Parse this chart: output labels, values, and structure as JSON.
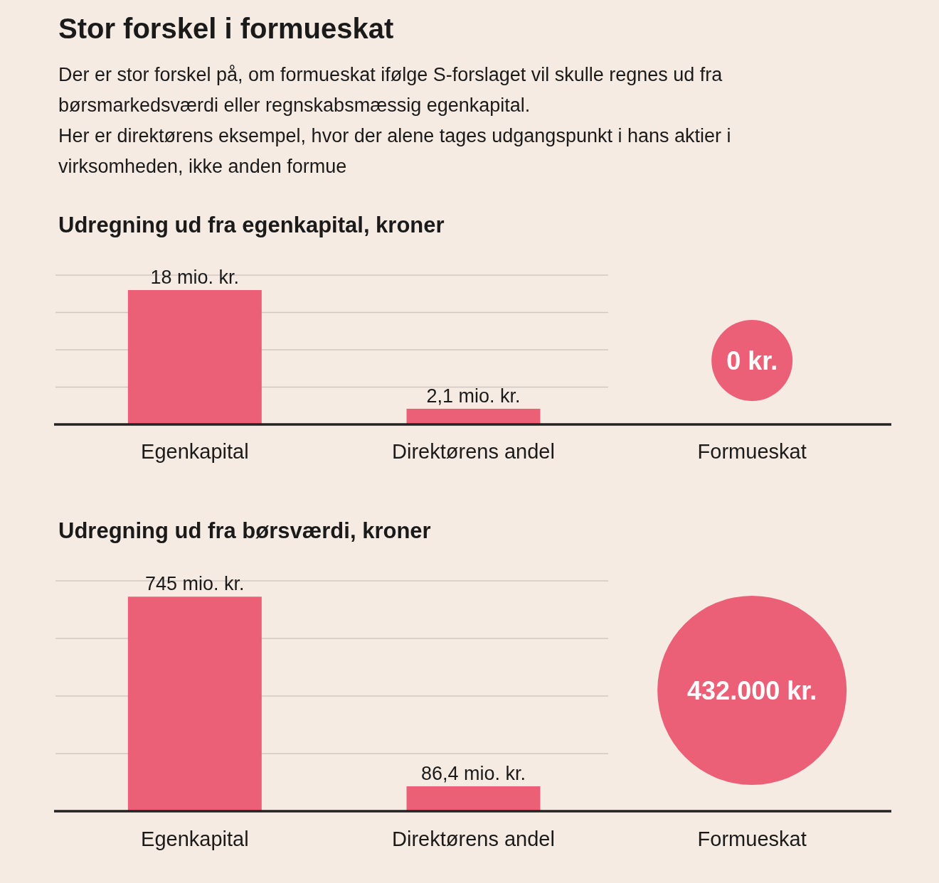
{
  "chart_data": [
    {
      "type": "other",
      "title": "Stor forskel i formueskat",
      "subtitle": "Der er stor forskel på, om formueskat ifølge S-forslaget vil skulle regnes ud fra børsmarkedsværdi eller regnskabsmæssig egenkapital.\nHer er direktørens eksempel, hvor der alene tages udgangspunkt i hans aktier i virksomheden, ikke anden formue"
    },
    {
      "type": "bar",
      "title": "Udregning ud fra egenkapital, kroner",
      "categories": [
        "Egenkapital",
        "Direktørens andel",
        "Formueskat"
      ],
      "values": [
        18,
        2.1,
        null
      ],
      "value_labels": [
        "18 mio. kr.",
        "2,1 mio. kr.",
        null
      ],
      "color": "#eb5f77",
      "ylim": [
        0,
        20
      ],
      "tick_labels": "x",
      "ref_lines": [
        {
          "axis": "y",
          "value": 5,
          "color": "#cfc8c2"
        },
        {
          "axis": "y",
          "value": 10,
          "color": "#cfc8c2"
        },
        {
          "axis": "y",
          "value": 15,
          "color": "#cfc8c2"
        },
        {
          "axis": "y",
          "value": 20,
          "color": "#cfc8c2"
        }
      ],
      "annotations": [
        "0 kr."
      ]
    },
    {
      "type": "bar",
      "title": "Udregning ud fra børsværdi, kroner",
      "categories": [
        "Egenkapital",
        "Direktørens andel",
        "Formueskat"
      ],
      "values": [
        745,
        86.4,
        null
      ],
      "value_labels": [
        "745 mio. kr.",
        "86,4 mio. kr.",
        null
      ],
      "color": "#eb5f77",
      "ylim": [
        0,
        800
      ],
      "tick_labels": "x",
      "ref_lines": [
        {
          "axis": "y",
          "value": 200,
          "color": "#cfc8c2"
        },
        {
          "axis": "y",
          "value": 400,
          "color": "#cfc8c2"
        },
        {
          "axis": "y",
          "value": 600,
          "color": "#cfc8c2"
        },
        {
          "axis": "y",
          "value": 800,
          "color": "#cfc8c2"
        }
      ],
      "annotations": [
        "432.000 kr."
      ]
    }
  ]
}
